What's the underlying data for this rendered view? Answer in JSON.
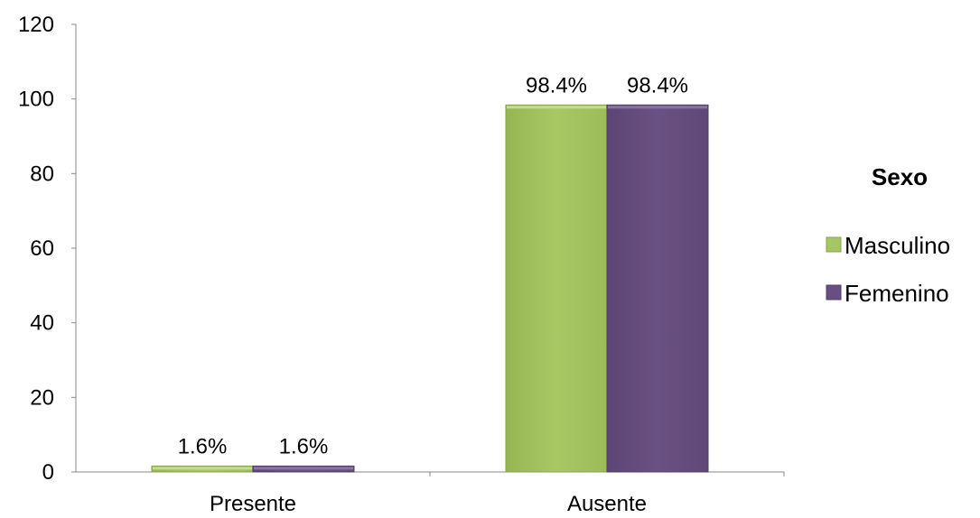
{
  "chart_data": {
    "type": "bar",
    "title": "",
    "xlabel": "",
    "ylabel": "",
    "ylim": [
      0,
      120
    ],
    "yticks": [
      0,
      20,
      40,
      60,
      80,
      100,
      120
    ],
    "categories": [
      "Presente",
      "Ausente"
    ],
    "series": [
      {
        "name": "Masculino",
        "values": [
          1.6,
          98.4
        ],
        "labels": [
          "1.6%",
          "98.4%"
        ],
        "color": "#a6c662"
      },
      {
        "name": "Femenino",
        "values": [
          1.6,
          98.4
        ],
        "labels": [
          "1.6%",
          "98.4%"
        ],
        "color": "#684f81"
      }
    ],
    "grid": false,
    "legend": {
      "title": "Sexo",
      "placement": "right"
    }
  }
}
